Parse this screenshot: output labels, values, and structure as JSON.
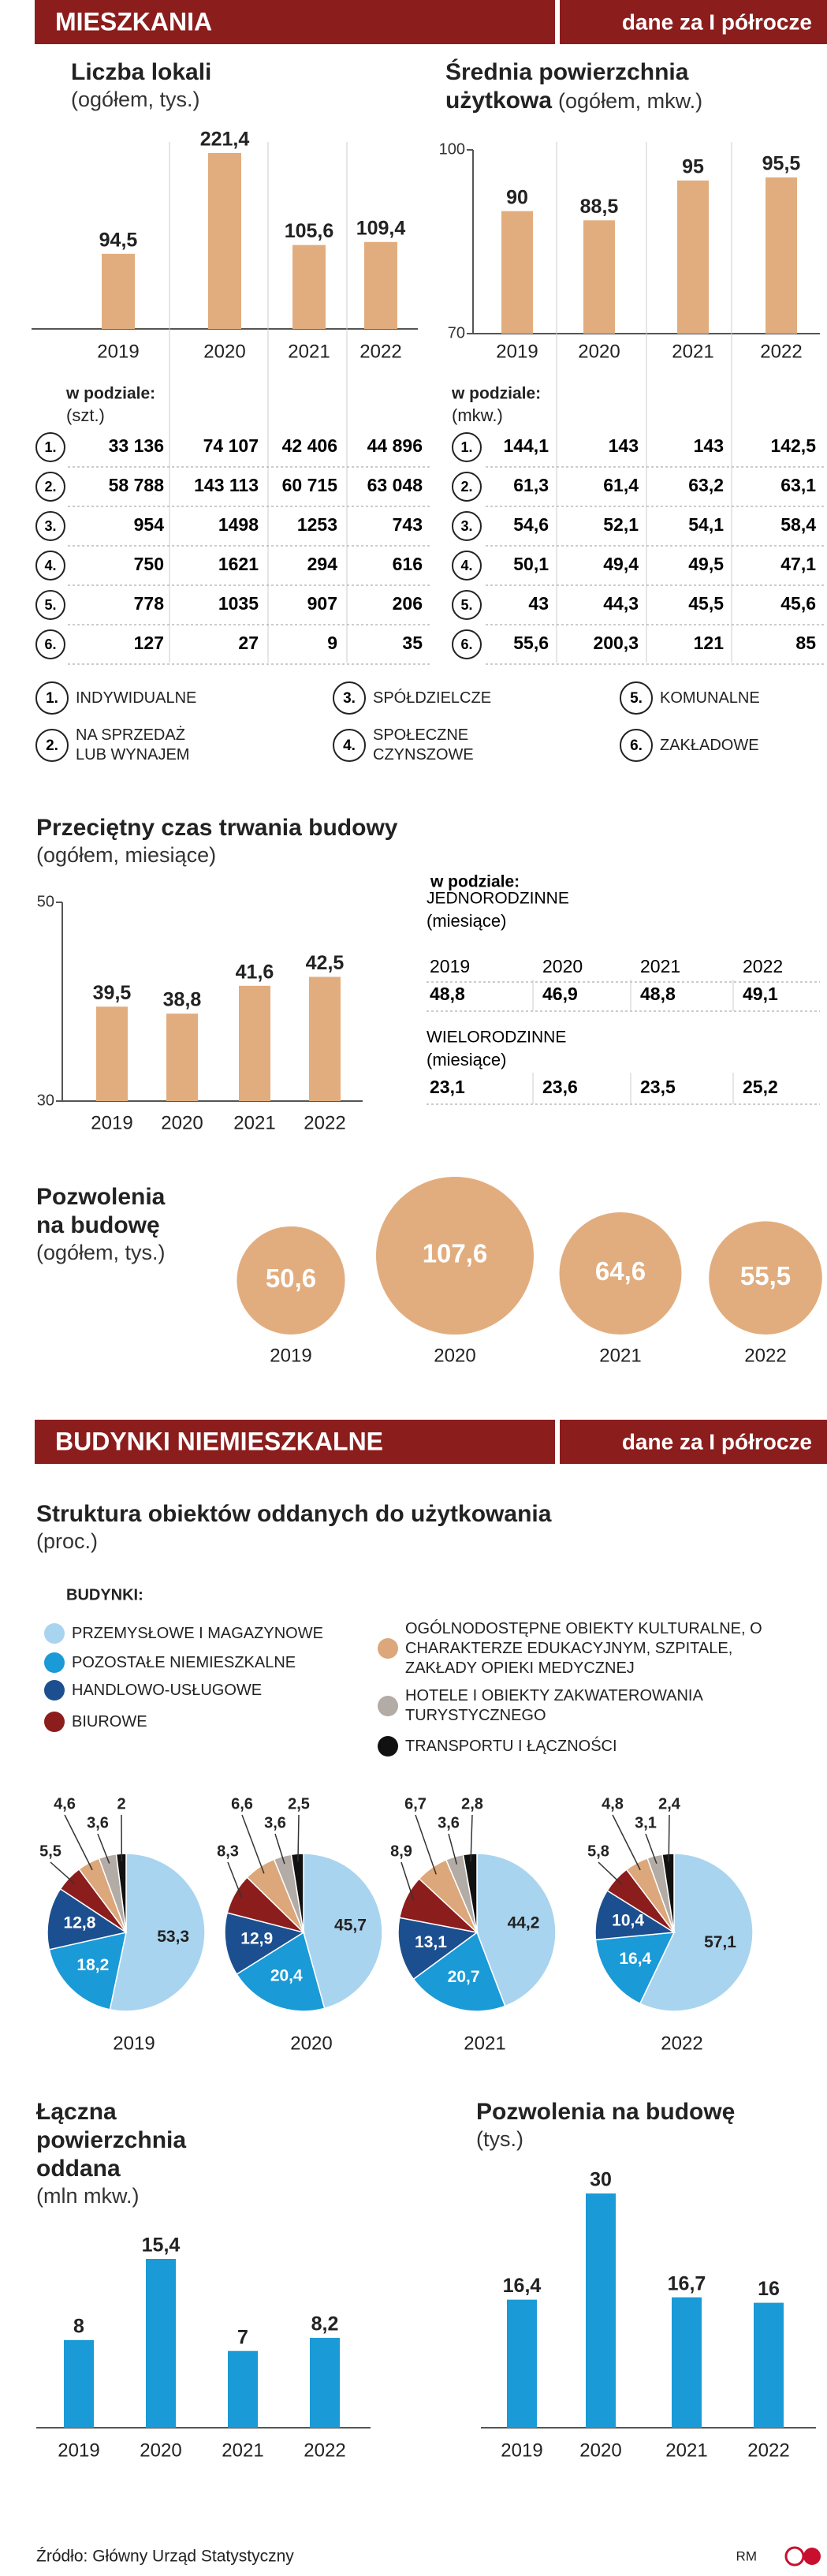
{
  "headers": [
    {
      "title": "MIESZKANIA",
      "note": "dane za I półrocze"
    },
    {
      "title": "BUDYNKI NIEMIESZKALNE",
      "note": "dane za I półrocze"
    }
  ],
  "chart_data": [
    {
      "type": "bar",
      "title": "Liczba lokali",
      "subtitle": "(ogółem, tys.)",
      "categories": [
        "2019",
        "2020",
        "2021",
        "2022"
      ],
      "values": [
        94.5,
        221.4,
        105.6,
        109.4
      ],
      "value_labels": [
        "94,5",
        "221,4",
        "105,6",
        "109,4"
      ],
      "color": "#e2ad7e"
    },
    {
      "type": "bar",
      "title": "Średnia powierzchnia użytkowa",
      "subtitle": "(ogółem, mkw.)",
      "categories": [
        "2019",
        "2020",
        "2021",
        "2022"
      ],
      "values": [
        90,
        88.5,
        95,
        95.5
      ],
      "value_labels": [
        "90",
        "88,5",
        "95",
        "95,5"
      ],
      "color": "#e2ad7e",
      "ylim": [
        70,
        100
      ],
      "yticks": [
        70,
        100
      ]
    },
    {
      "type": "bar",
      "title": "Przeciętny czas trwania budowy",
      "subtitle": "(ogółem, miesiące)",
      "categories": [
        "2019",
        "2020",
        "2021",
        "2022"
      ],
      "values": [
        39.5,
        38.8,
        41.6,
        42.5
      ],
      "value_labels": [
        "39,5",
        "38,8",
        "41,6",
        "42,5"
      ],
      "color": "#e2ad7e",
      "ylim": [
        30,
        50
      ],
      "yticks": [
        30,
        50
      ]
    },
    {
      "type": "bubble",
      "title": "Pozwolenia na budowę",
      "subtitle": "(ogółem, tys.)",
      "categories": [
        "2019",
        "2020",
        "2021",
        "2022"
      ],
      "values": [
        50.6,
        107.6,
        64.6,
        55.5
      ],
      "value_labels": [
        "50,6",
        "107,6",
        "64,6",
        "55,5"
      ],
      "color": "#e2ad7e"
    },
    {
      "type": "pie",
      "title": "Struktura obiektów oddanych do użytkowania",
      "subtitle": "(proc.)",
      "legend_title": "BUDYNKI:",
      "categories": [
        "PRZEMYSŁOWE I MAGAZYNOWE",
        "POZOSTAŁE NIEMIESZKALNE",
        "HANDLOWO-USŁUGOWE",
        "BIUROWE",
        "OGÓLNODOSTĘPNE OBIEKTY KULTURALNE, O CHARAKTERZE EDUKACYJNYM, SZPITALE, ZAKŁADY OPIEKI MEDYCZNEJ",
        "HOTELE I OBIEKTY ZAKWATEROWANIA TURYSTYCZNEGO",
        "TRANSPORTU I ŁĄCZNOŚCI"
      ],
      "colors": [
        "#a9d4ef",
        "#1a9ad6",
        "#1c4f8f",
        "#8c1d1d",
        "#dca77a",
        "#b3aba5",
        "#111111"
      ],
      "series": [
        {
          "name": "2019",
          "values": [
            53.3,
            18.2,
            12.8,
            5.5,
            4.6,
            3.6,
            2
          ],
          "value_labels": [
            "53,3",
            "18,2",
            "12,8",
            "5,5",
            "4,6",
            "3,6",
            "2"
          ]
        },
        {
          "name": "2020",
          "values": [
            45.7,
            20.4,
            12.9,
            8.3,
            6.6,
            3.6,
            2.5
          ],
          "value_labels": [
            "45,7",
            "20,4",
            "12,9",
            "8,3",
            "6,6",
            "3,6",
            "2,5"
          ]
        },
        {
          "name": "2021",
          "values": [
            44.2,
            20.7,
            13.1,
            8.9,
            6.7,
            3.6,
            2.8
          ],
          "value_labels": [
            "44,2",
            "20,7",
            "13,1",
            "8,9",
            "6,7",
            "3,6",
            "2,8"
          ]
        },
        {
          "name": "2022",
          "values": [
            57.1,
            16.4,
            10.4,
            5.8,
            4.8,
            3.1,
            2.4
          ],
          "value_labels": [
            "57,1",
            "16,4",
            "10,4",
            "5,8",
            "4,8",
            "3,1",
            "2,4"
          ]
        }
      ]
    },
    {
      "type": "bar",
      "title": "Łączna powierzchnia oddana",
      "subtitle": "(mln mkw.)",
      "categories": [
        "2019",
        "2020",
        "2021",
        "2022"
      ],
      "values": [
        8,
        15.4,
        7,
        8.2
      ],
      "value_labels": [
        "8",
        "15,4",
        "7",
        "8,2"
      ],
      "color": "#1a9ad6"
    },
    {
      "type": "bar",
      "title": "Pozwolenia na budowę",
      "subtitle": "(tys.)",
      "categories": [
        "2019",
        "2020",
        "2021",
        "2022"
      ],
      "values": [
        16.4,
        30,
        16.7,
        16
      ],
      "value_labels": [
        "16,4",
        "30",
        "16,7",
        "16"
      ],
      "color": "#1a9ad6"
    }
  ],
  "tables": [
    {
      "label": "w podziale:",
      "unit": "(szt.)",
      "rows": [
        [
          "1.",
          "33 136",
          "74 107",
          "42 406",
          "44 896"
        ],
        [
          "2.",
          "58 788",
          "143 113",
          "60 715",
          "63 048"
        ],
        [
          "3.",
          "954",
          "1498",
          "1253",
          "743"
        ],
        [
          "4.",
          "750",
          "1621",
          "294",
          "616"
        ],
        [
          "5.",
          "778",
          "1035",
          "907",
          "206"
        ],
        [
          "6.",
          "127",
          "27",
          "9",
          "35"
        ]
      ]
    },
    {
      "label": "w podziale:",
      "unit": "(mkw.)",
      "rows": [
        [
          "1.",
          "144,1",
          "143",
          "143",
          "142,5"
        ],
        [
          "2.",
          "61,3",
          "61,4",
          "63,2",
          "63,1"
        ],
        [
          "3.",
          "54,6",
          "52,1",
          "54,1",
          "58,4"
        ],
        [
          "4.",
          "50,1",
          "49,4",
          "49,5",
          "47,1"
        ],
        [
          "5.",
          "43",
          "44,3",
          "45,5",
          "45,6"
        ],
        [
          "6.",
          "55,6",
          "200,3",
          "121",
          "85"
        ]
      ]
    }
  ],
  "types_legend": [
    {
      "num": "1.",
      "label": "INDYWIDUALNE"
    },
    {
      "num": "2.",
      "label": "NA SPRZEDAŻ LUB WYNAJEM"
    },
    {
      "num": "3.",
      "label": "SPÓŁDZIELCZE"
    },
    {
      "num": "4.",
      "label": "SPOŁECZNE CZYNSZOWE"
    },
    {
      "num": "5.",
      "label": "KOMUNALNE"
    },
    {
      "num": "6.",
      "label": "ZAKŁADOWE"
    }
  ],
  "duration_table": {
    "label": "w podziale:",
    "groups": [
      {
        "title": "JEDNORODZINNE",
        "unit": "(miesiące)",
        "years": [
          "2019",
          "2020",
          "2021",
          "2022"
        ],
        "values": [
          "48,8",
          "46,9",
          "48,8",
          "49,1"
        ]
      },
      {
        "title": "WIELORODZINNE",
        "unit": "(miesiące)",
        "values": [
          "23,1",
          "23,6",
          "23,5",
          "25,2"
        ]
      }
    ]
  },
  "footer": {
    "source": "Źródło: Główny Urząd Statystyczny",
    "credit": "RM"
  }
}
